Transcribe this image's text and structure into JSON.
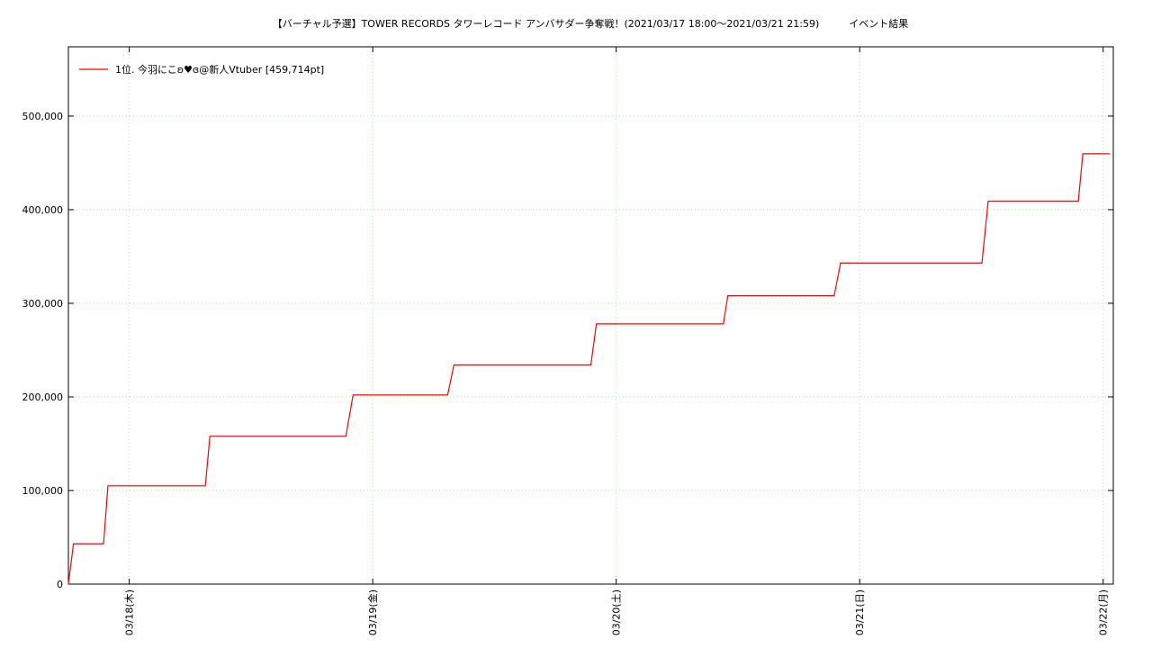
{
  "chart_data": {
    "type": "line",
    "title": "【バーチャル予選】TOWER RECORDS タワーレコード アンバサダー争奪戦！(2021/03/17 18:00〜2021/03/21 21:59)　　　イベント結果",
    "x": [
      "03/17 18:00",
      "03/17 18:30",
      "03/17 21:28",
      "03/17 21:54",
      "03/18 07:30",
      "03/18 07:57",
      "03/18 21:21",
      "03/18 22:04",
      "03/19 07:23",
      "03/19 08:00",
      "03/19 21:30",
      "03/19 22:03",
      "03/20 10:34",
      "03/20 11:00",
      "03/20 21:29",
      "03/20 22:07",
      "03/21 12:03",
      "03/21 12:40",
      "03/21 21:33",
      "03/21 22:00",
      "03/22 00:40"
    ],
    "series": [
      {
        "name": "1位. 今羽にこʚ♥ɞ@新人Vtuber [459,714pt]",
        "color": "#ff0000",
        "values": [
          0,
          43000,
          43000,
          105000,
          105000,
          158000,
          158000,
          202000,
          202000,
          234000,
          234000,
          278000,
          278000,
          308000,
          308000,
          343000,
          343000,
          409000,
          409000,
          459714,
          459714
        ]
      }
    ],
    "xlim": [
      "03/17 18:00",
      "03/22 01:00"
    ],
    "xticks": [
      {
        "value": "03/18 00:00",
        "label": "03/18(木)"
      },
      {
        "value": "03/19 00:00",
        "label": "03/19(金)"
      },
      {
        "value": "03/20 00:00",
        "label": "03/20(土)"
      },
      {
        "value": "03/21 00:00",
        "label": "03/21(日)"
      },
      {
        "value": "03/22 00:00",
        "label": "03/22(月)"
      }
    ],
    "ylim": [
      0,
      574000
    ],
    "yticks": [
      0,
      {
        "value": 100000,
        "label": "100,000"
      },
      {
        "value": 200000,
        "label": "200,000"
      },
      {
        "value": 300000,
        "label": "300,000"
      },
      {
        "value": 400000,
        "label": "400,000"
      },
      {
        "value": 500000,
        "label": "500,000"
      }
    ],
    "grid": true,
    "legend": "top-left"
  }
}
